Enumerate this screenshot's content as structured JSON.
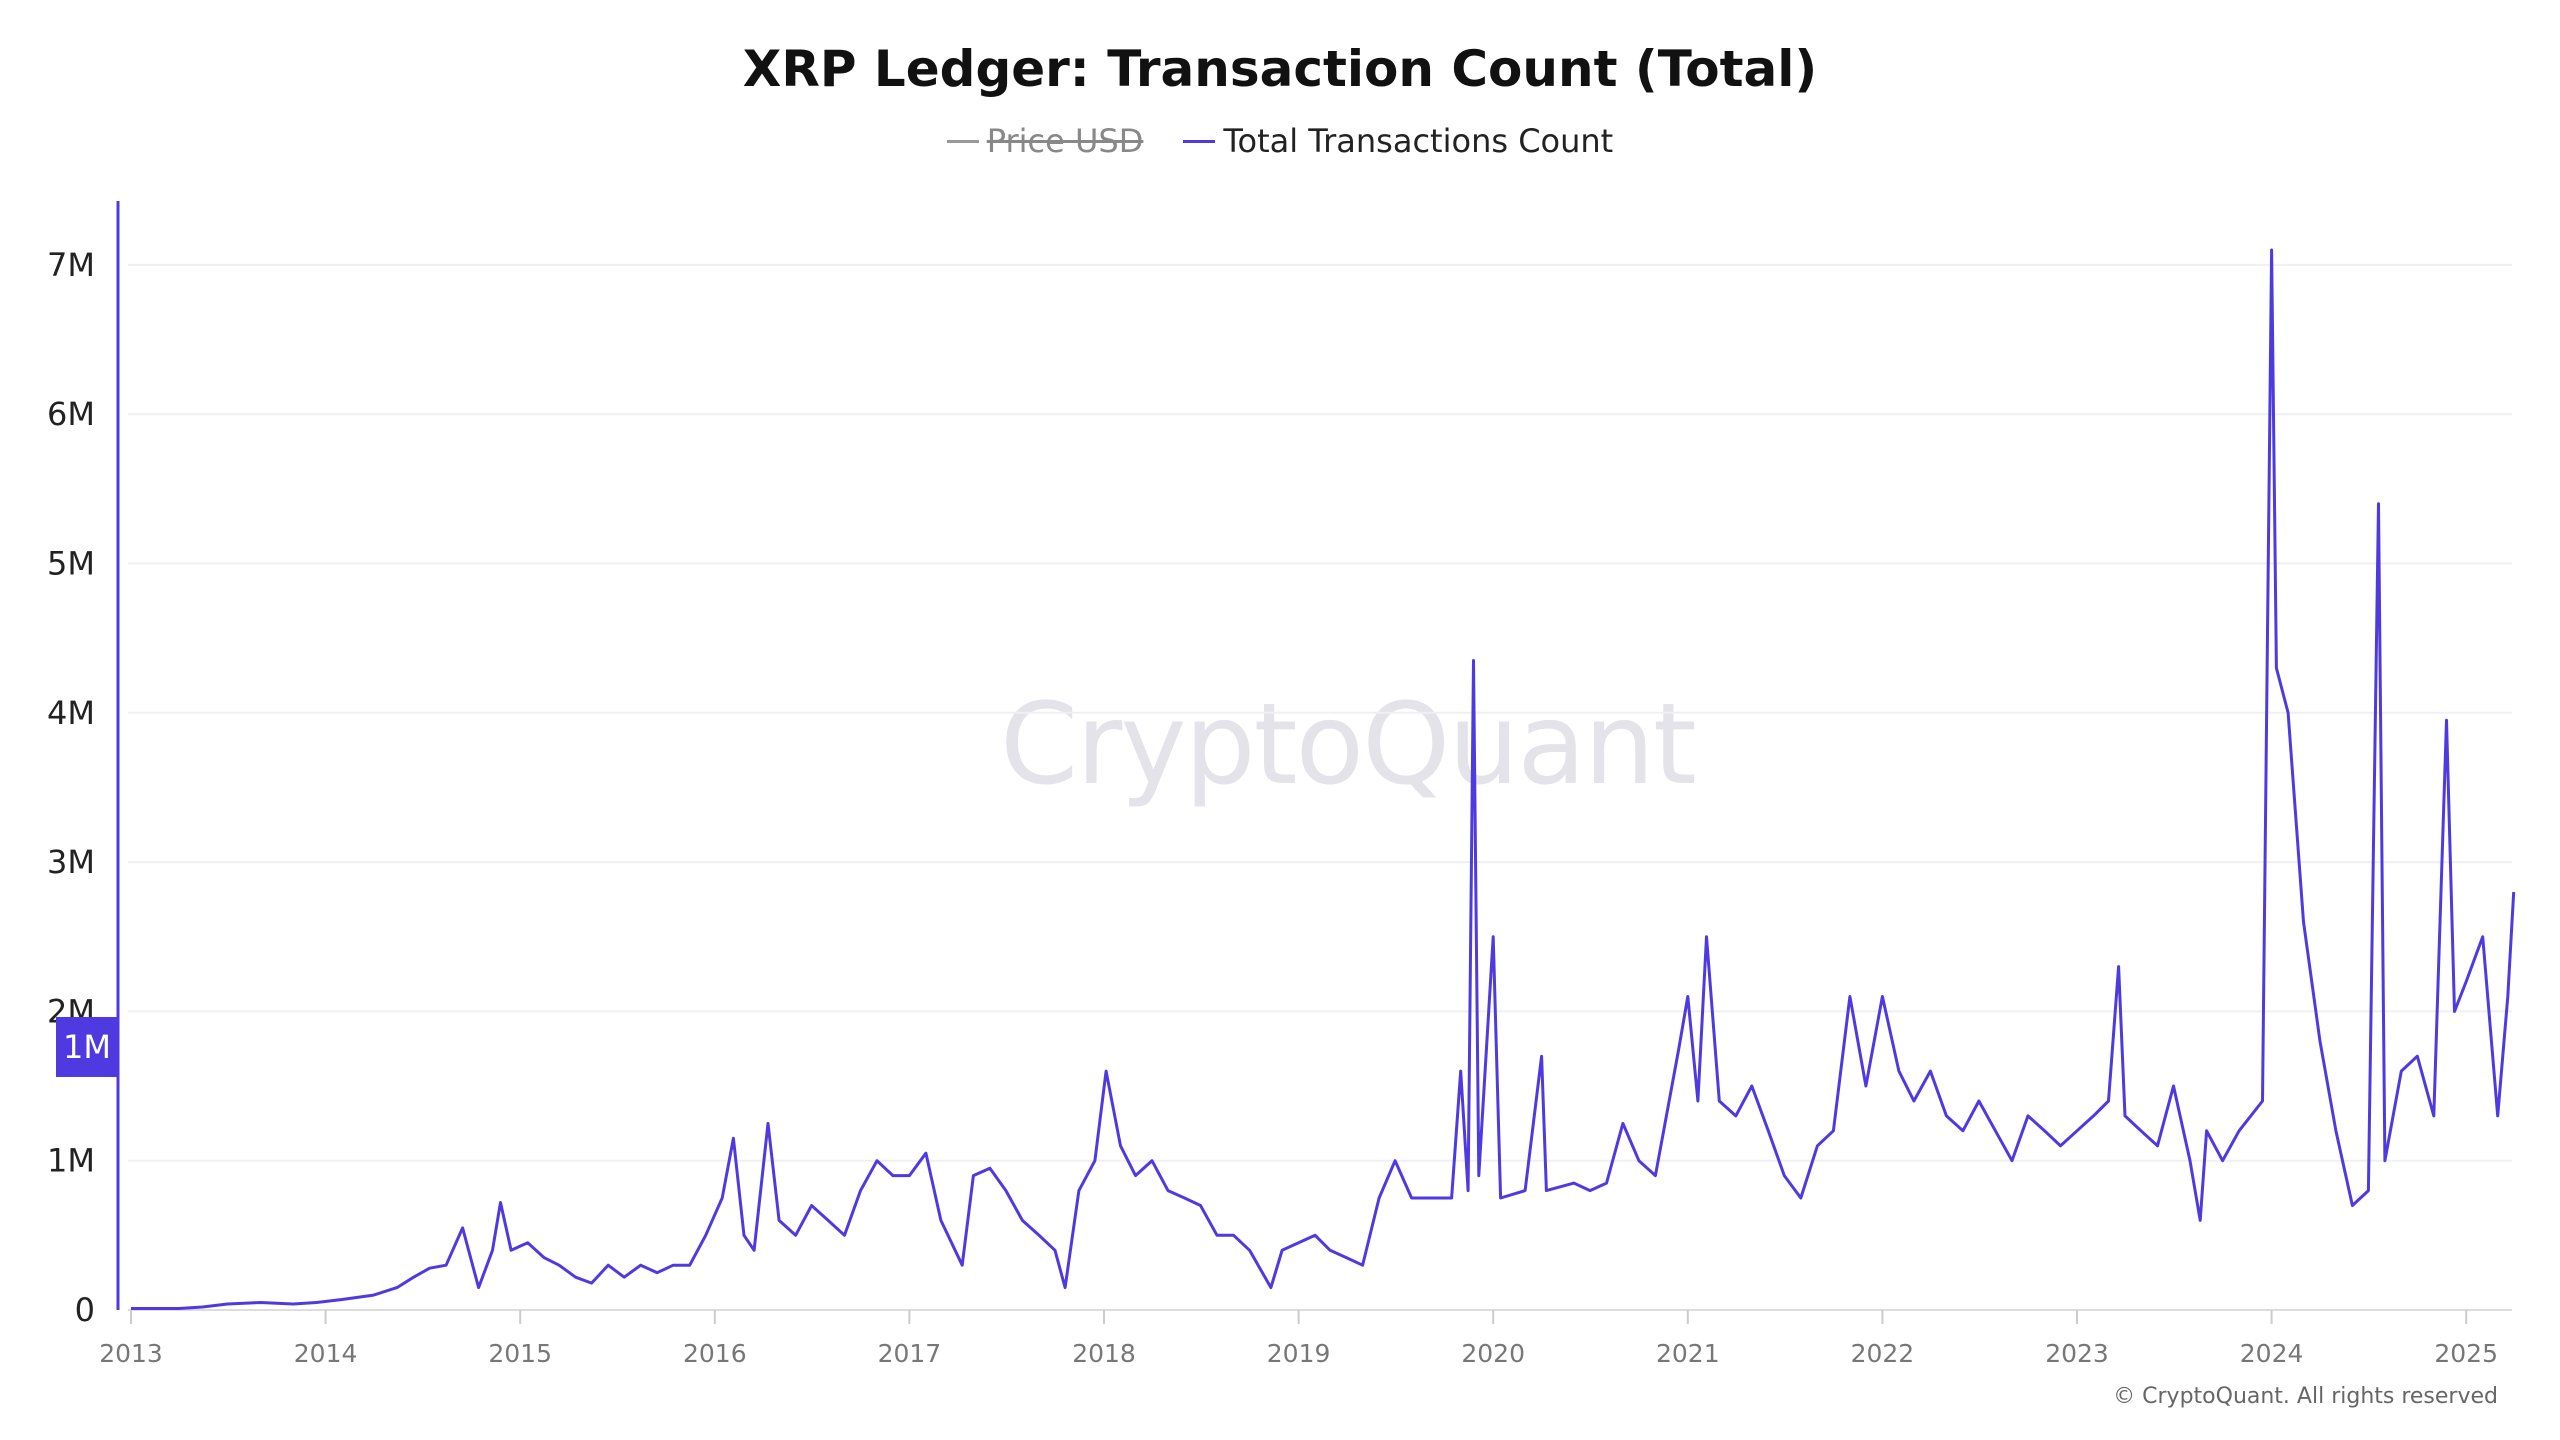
{
  "chart_data": {
    "type": "line",
    "title": "XRP Ledger: Transaction Count (Total)",
    "legend": [
      {
        "name": "Price USD",
        "color": "#999999",
        "hidden": true
      },
      {
        "name": "Total Transactions Count",
        "color": "#4f3ae2",
        "hidden": false
      }
    ],
    "legend_placement": "top-center",
    "grid": true,
    "ylim": [
      0,
      7400000
    ],
    "yticks": [
      0,
      1000000,
      2000000,
      3000000,
      4000000,
      5000000,
      6000000,
      7000000
    ],
    "ytick_labels": [
      "0",
      "1M",
      "2M",
      "3M",
      "4M",
      "5M",
      "6M",
      "7M"
    ],
    "xlim": [
      "2013-01-01",
      "2025-03-31"
    ],
    "xtick_labels": [
      "2013",
      "2014",
      "2015",
      "2016",
      "2017",
      "2018",
      "2019",
      "2020",
      "2021",
      "2022",
      "2023",
      "2024",
      "2025"
    ],
    "crosshair_label": "1M",
    "series": [
      {
        "name": "Total Transactions Count",
        "unit": "M",
        "points": [
          [
            "2013-01-01",
            0.01
          ],
          [
            "2013-04-01",
            0.01
          ],
          [
            "2013-05-15",
            0.02
          ],
          [
            "2013-07-01",
            0.04
          ],
          [
            "2013-09-01",
            0.05
          ],
          [
            "2013-11-01",
            0.04
          ],
          [
            "2013-12-15",
            0.05
          ],
          [
            "2014-02-01",
            0.07
          ],
          [
            "2014-04-01",
            0.1
          ],
          [
            "2014-05-15",
            0.15
          ],
          [
            "2014-06-15",
            0.22
          ],
          [
            "2014-07-15",
            0.28
          ],
          [
            "2014-08-15",
            0.3
          ],
          [
            "2014-09-15",
            0.55
          ],
          [
            "2014-10-15",
            0.15
          ],
          [
            "2014-11-10",
            0.4
          ],
          [
            "2014-11-25",
            0.72
          ],
          [
            "2014-12-15",
            0.4
          ],
          [
            "2015-01-15",
            0.45
          ],
          [
            "2015-02-15",
            0.35
          ],
          [
            "2015-03-15",
            0.3
          ],
          [
            "2015-04-15",
            0.22
          ],
          [
            "2015-05-15",
            0.18
          ],
          [
            "2015-06-15",
            0.3
          ],
          [
            "2015-07-15",
            0.22
          ],
          [
            "2015-08-15",
            0.3
          ],
          [
            "2015-09-15",
            0.25
          ],
          [
            "2015-10-15",
            0.3
          ],
          [
            "2015-11-15",
            0.3
          ],
          [
            "2015-12-15",
            0.5
          ],
          [
            "2016-01-15",
            0.75
          ],
          [
            "2016-02-05",
            1.15
          ],
          [
            "2016-02-25",
            0.5
          ],
          [
            "2016-03-15",
            0.4
          ],
          [
            "2016-04-10",
            1.25
          ],
          [
            "2016-05-01",
            0.6
          ],
          [
            "2016-06-01",
            0.5
          ],
          [
            "2016-07-01",
            0.7
          ],
          [
            "2016-08-01",
            0.6
          ],
          [
            "2016-09-01",
            0.5
          ],
          [
            "2016-10-01",
            0.8
          ],
          [
            "2016-11-01",
            1.0
          ],
          [
            "2016-12-01",
            0.9
          ],
          [
            "2017-01-01",
            0.9
          ],
          [
            "2017-02-01",
            1.05
          ],
          [
            "2017-03-01",
            0.6
          ],
          [
            "2017-04-10",
            0.3
          ],
          [
            "2017-05-01",
            0.9
          ],
          [
            "2017-06-01",
            0.95
          ],
          [
            "2017-07-01",
            0.8
          ],
          [
            "2017-08-01",
            0.6
          ],
          [
            "2017-09-01",
            0.5
          ],
          [
            "2017-10-01",
            0.4
          ],
          [
            "2017-10-20",
            0.15
          ],
          [
            "2017-11-15",
            0.8
          ],
          [
            "2017-12-15",
            1.0
          ],
          [
            "2018-01-05",
            1.6
          ],
          [
            "2018-02-01",
            1.1
          ],
          [
            "2018-03-01",
            0.9
          ],
          [
            "2018-04-01",
            1.0
          ],
          [
            "2018-05-01",
            0.8
          ],
          [
            "2018-06-01",
            0.75
          ],
          [
            "2018-07-01",
            0.7
          ],
          [
            "2018-08-01",
            0.5
          ],
          [
            "2018-09-01",
            0.5
          ],
          [
            "2018-10-01",
            0.4
          ],
          [
            "2018-11-10",
            0.15
          ],
          [
            "2018-12-01",
            0.4
          ],
          [
            "2019-01-01",
            0.45
          ],
          [
            "2019-02-01",
            0.5
          ],
          [
            "2019-03-01",
            0.4
          ],
          [
            "2019-04-01",
            0.35
          ],
          [
            "2019-05-01",
            0.3
          ],
          [
            "2019-06-01",
            0.75
          ],
          [
            "2019-07-01",
            1.0
          ],
          [
            "2019-08-01",
            0.75
          ],
          [
            "2019-09-01",
            0.75
          ],
          [
            "2019-10-15",
            0.75
          ],
          [
            "2019-11-01",
            1.6
          ],
          [
            "2019-11-15",
            0.8
          ],
          [
            "2019-11-25",
            4.35
          ],
          [
            "2019-12-05",
            0.9
          ],
          [
            "2020-01-01",
            2.5
          ],
          [
            "2020-01-15",
            0.75
          ],
          [
            "2020-03-01",
            0.8
          ],
          [
            "2020-04-01",
            1.7
          ],
          [
            "2020-04-10",
            0.8
          ],
          [
            "2020-06-01",
            0.85
          ],
          [
            "2020-07-01",
            0.8
          ],
          [
            "2020-08-01",
            0.85
          ],
          [
            "2020-09-01",
            1.25
          ],
          [
            "2020-10-01",
            1.0
          ],
          [
            "2020-11-01",
            0.9
          ],
          [
            "2020-12-15",
            1.75
          ],
          [
            "2021-01-01",
            2.1
          ],
          [
            "2021-01-20",
            1.4
          ],
          [
            "2021-02-05",
            2.5
          ],
          [
            "2021-03-01",
            1.4
          ],
          [
            "2021-04-01",
            1.3
          ],
          [
            "2021-05-01",
            1.5
          ],
          [
            "2021-06-01",
            1.2
          ],
          [
            "2021-07-01",
            0.9
          ],
          [
            "2021-08-01",
            0.75
          ],
          [
            "2021-09-01",
            1.1
          ],
          [
            "2021-10-01",
            1.2
          ],
          [
            "2021-11-01",
            2.1
          ],
          [
            "2021-12-01",
            1.5
          ],
          [
            "2022-01-01",
            2.1
          ],
          [
            "2022-02-01",
            1.6
          ],
          [
            "2022-03-01",
            1.4
          ],
          [
            "2022-04-01",
            1.6
          ],
          [
            "2022-05-01",
            1.3
          ],
          [
            "2022-06-01",
            1.2
          ],
          [
            "2022-07-01",
            1.4
          ],
          [
            "2022-08-01",
            1.2
          ],
          [
            "2022-09-01",
            1.0
          ],
          [
            "2022-10-01",
            1.3
          ],
          [
            "2022-11-01",
            1.2
          ],
          [
            "2022-12-01",
            1.1
          ],
          [
            "2023-01-01",
            1.2
          ],
          [
            "2023-02-01",
            1.3
          ],
          [
            "2023-03-01",
            1.4
          ],
          [
            "2023-03-20",
            2.3
          ],
          [
            "2023-04-01",
            1.3
          ],
          [
            "2023-05-01",
            1.2
          ],
          [
            "2023-06-01",
            1.1
          ],
          [
            "2023-07-01",
            1.5
          ],
          [
            "2023-08-01",
            1.0
          ],
          [
            "2023-08-20",
            0.6
          ],
          [
            "2023-09-01",
            1.2
          ],
          [
            "2023-10-01",
            1.0
          ],
          [
            "2023-11-01",
            1.2
          ],
          [
            "2023-12-15",
            1.4
          ],
          [
            "2024-01-01",
            7.1
          ],
          [
            "2024-01-10",
            4.3
          ],
          [
            "2024-02-01",
            4.0
          ],
          [
            "2024-03-01",
            2.6
          ],
          [
            "2024-04-01",
            1.8
          ],
          [
            "2024-05-01",
            1.2
          ],
          [
            "2024-06-01",
            0.7
          ],
          [
            "2024-07-01",
            0.8
          ],
          [
            "2024-07-20",
            5.4
          ],
          [
            "2024-08-01",
            1.0
          ],
          [
            "2024-09-01",
            1.6
          ],
          [
            "2024-10-01",
            1.7
          ],
          [
            "2024-11-01",
            1.3
          ],
          [
            "2024-11-25",
            3.95
          ],
          [
            "2024-12-10",
            2.0
          ],
          [
            "2025-01-01",
            2.2
          ],
          [
            "2025-02-01",
            2.5
          ],
          [
            "2025-03-01",
            1.3
          ],
          [
            "2025-03-20",
            2.1
          ],
          [
            "2025-03-31",
            2.8
          ]
        ]
      }
    ]
  },
  "watermark": "CryptoQuant",
  "copyright": "© CryptoQuant. All rights reserved"
}
